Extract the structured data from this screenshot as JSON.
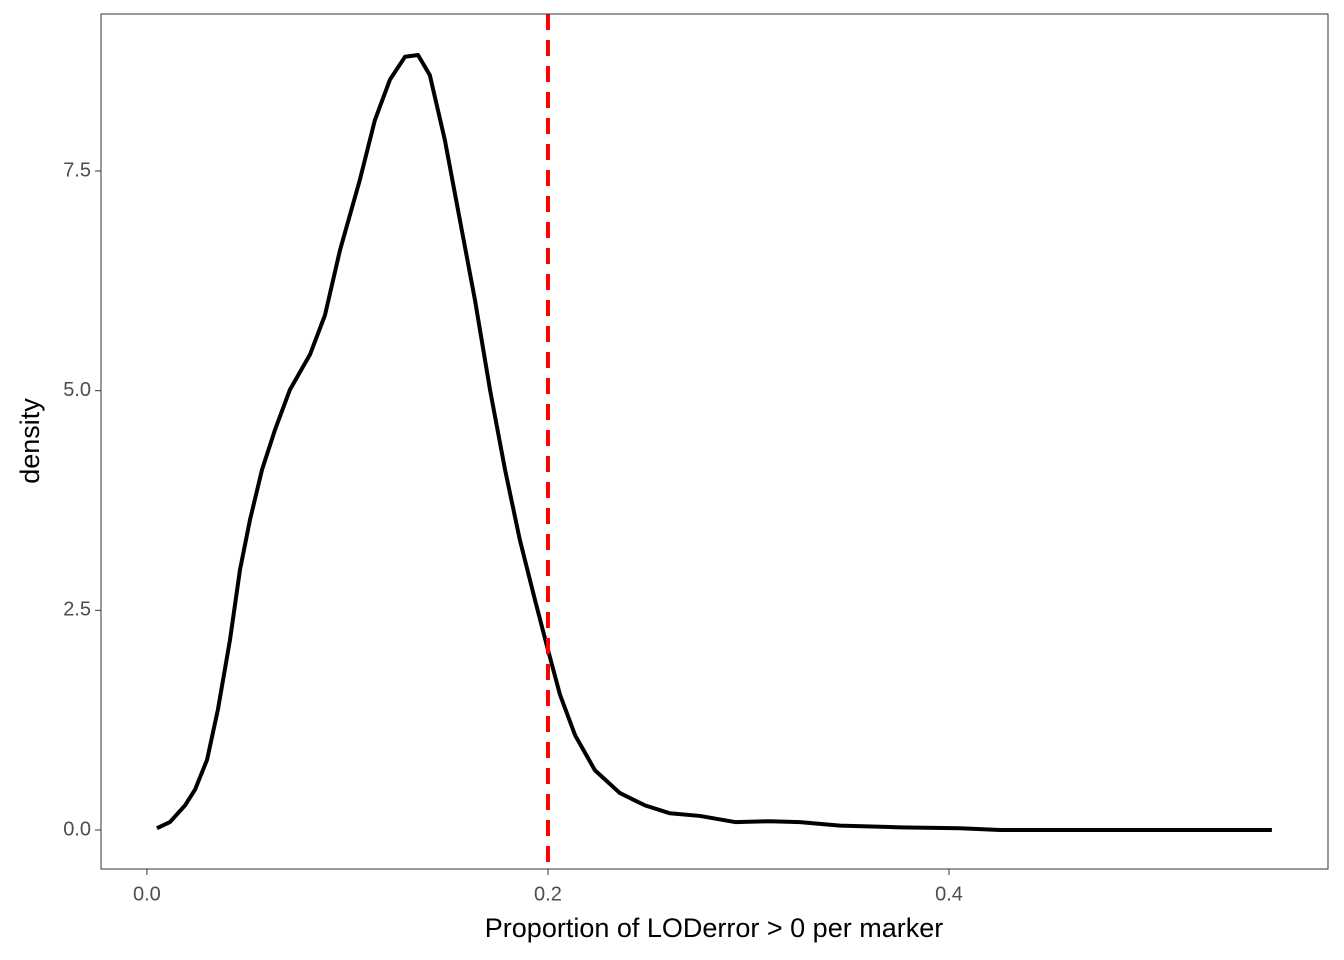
{
  "chart_data": {
    "type": "line",
    "xlabel": "Proportion of LODerror > 0 per marker",
    "ylabel": "density",
    "x": [
      0.005,
      0.0115,
      0.019,
      0.024,
      0.03,
      0.0354,
      0.0414,
      0.0464,
      0.0514,
      0.0574,
      0.0638,
      0.0713,
      0.0813,
      0.0888,
      0.0963,
      0.1062,
      0.1137,
      0.1212,
      0.1287,
      0.1352,
      0.1411,
      0.1486,
      0.1561,
      0.1636,
      0.1711,
      0.1786,
      0.186,
      0.1935,
      0.2,
      0.206,
      0.2135,
      0.2234,
      0.2359,
      0.2484,
      0.2608,
      0.2758,
      0.2933,
      0.3107,
      0.3257,
      0.3456,
      0.3756,
      0.4055,
      0.4254,
      0.475,
      0.5252,
      0.561
    ],
    "values": [
      0.02,
      0.09,
      0.28,
      0.46,
      0.8,
      1.37,
      2.16,
      2.96,
      3.53,
      4.1,
      4.55,
      5.01,
      5.41,
      5.86,
      6.6,
      7.4,
      8.08,
      8.54,
      8.8,
      8.82,
      8.59,
      7.85,
      6.94,
      6.03,
      5.01,
      4.1,
      3.3,
      2.62,
      2.05,
      1.54,
      1.08,
      0.68,
      0.42,
      0.28,
      0.19,
      0.16,
      0.09,
      0.1,
      0.09,
      0.05,
      0.03,
      0.02,
      0.0,
      0.0,
      0.0,
      0.0
    ],
    "color": "#000000",
    "vline": {
      "x": 0.2,
      "color": "#ff0000"
    },
    "xlim": [
      -0.0229,
      0.589
    ],
    "ylim": [
      -0.444,
      9.287
    ],
    "xticks": [
      {
        "value": 0,
        "label": "0.0"
      },
      {
        "value": 0.2,
        "label": "0.2"
      },
      {
        "value": 0.4,
        "label": "0.4"
      }
    ],
    "yticks": [
      {
        "value": 0,
        "label": "0.0"
      },
      2.5,
      {
        "value": 5,
        "label": "5.0"
      },
      7.5
    ],
    "grid": false
  }
}
